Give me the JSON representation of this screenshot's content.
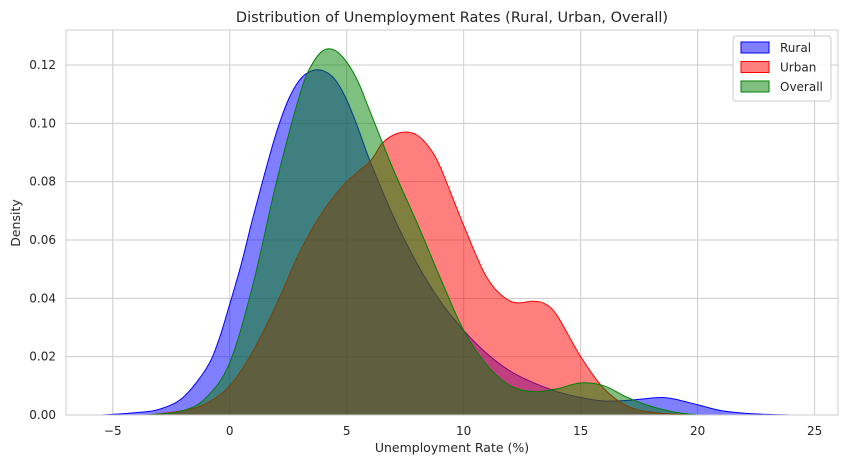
{
  "chart_data": {
    "type": "area",
    "title": "Distribution of Unemployment Rates (Rural, Urban, Overall)",
    "xlabel": "Unemployment Rate (%)",
    "ylabel": "Density",
    "xlim": [
      -7,
      26
    ],
    "ylim": [
      0,
      0.132
    ],
    "xticks": [
      -5,
      0,
      5,
      10,
      15,
      20,
      25
    ],
    "yticks": [
      0.0,
      0.02,
      0.04,
      0.06,
      0.08,
      0.1,
      0.12
    ],
    "grid": true,
    "legend_position": "top-right",
    "series": [
      {
        "name": "Rural",
        "color": "#0000ff",
        "fill_opacity": 0.5,
        "x": [
          -5.5,
          -4,
          -3,
          -2,
          -1,
          -0.5,
          0,
          0.5,
          1,
          1.5,
          2,
          2.5,
          3,
          3.5,
          4,
          4.5,
          5,
          5.5,
          6,
          7,
          8,
          9,
          10,
          11,
          12,
          13,
          14,
          15,
          16,
          17,
          18,
          18.5,
          19,
          20,
          21,
          22,
          23,
          24
        ],
        "y": [
          0.0,
          0.0008,
          0.002,
          0.006,
          0.016,
          0.025,
          0.038,
          0.052,
          0.068,
          0.083,
          0.097,
          0.108,
          0.115,
          0.118,
          0.118,
          0.115,
          0.108,
          0.098,
          0.087,
          0.068,
          0.052,
          0.039,
          0.029,
          0.021,
          0.015,
          0.011,
          0.008,
          0.006,
          0.0048,
          0.005,
          0.0058,
          0.006,
          0.0055,
          0.0035,
          0.0015,
          0.0006,
          0.0002,
          0.0
        ]
      },
      {
        "name": "Urban",
        "color": "#ff0000",
        "fill_opacity": 0.5,
        "x": [
          -3.5,
          -2,
          -1,
          0,
          1,
          2,
          3,
          4,
          5,
          6,
          6.5,
          7,
          7.5,
          8,
          8.5,
          9,
          10,
          11,
          12,
          13,
          13.5,
          14,
          15,
          16,
          17,
          18,
          19,
          20
        ],
        "y": [
          0.0,
          0.0015,
          0.004,
          0.01,
          0.022,
          0.038,
          0.056,
          0.07,
          0.08,
          0.087,
          0.093,
          0.096,
          0.097,
          0.096,
          0.092,
          0.085,
          0.065,
          0.047,
          0.039,
          0.039,
          0.038,
          0.034,
          0.02,
          0.009,
          0.003,
          0.001,
          0.0003,
          0.0
        ]
      },
      {
        "name": "Overall",
        "color": "#008000",
        "fill_opacity": 0.5,
        "x": [
          -3.5,
          -2,
          -1,
          0,
          1,
          2,
          3,
          3.5,
          4,
          4.5,
          5,
          5.5,
          6,
          7,
          8,
          9,
          10,
          11,
          12,
          13,
          14,
          15,
          16,
          17,
          18,
          19,
          20
        ],
        "y": [
          0.0,
          0.0015,
          0.006,
          0.018,
          0.045,
          0.08,
          0.11,
          0.12,
          0.125,
          0.125,
          0.121,
          0.114,
          0.104,
          0.084,
          0.066,
          0.047,
          0.029,
          0.017,
          0.01,
          0.008,
          0.009,
          0.011,
          0.01,
          0.006,
          0.003,
          0.001,
          0.0
        ]
      }
    ]
  }
}
